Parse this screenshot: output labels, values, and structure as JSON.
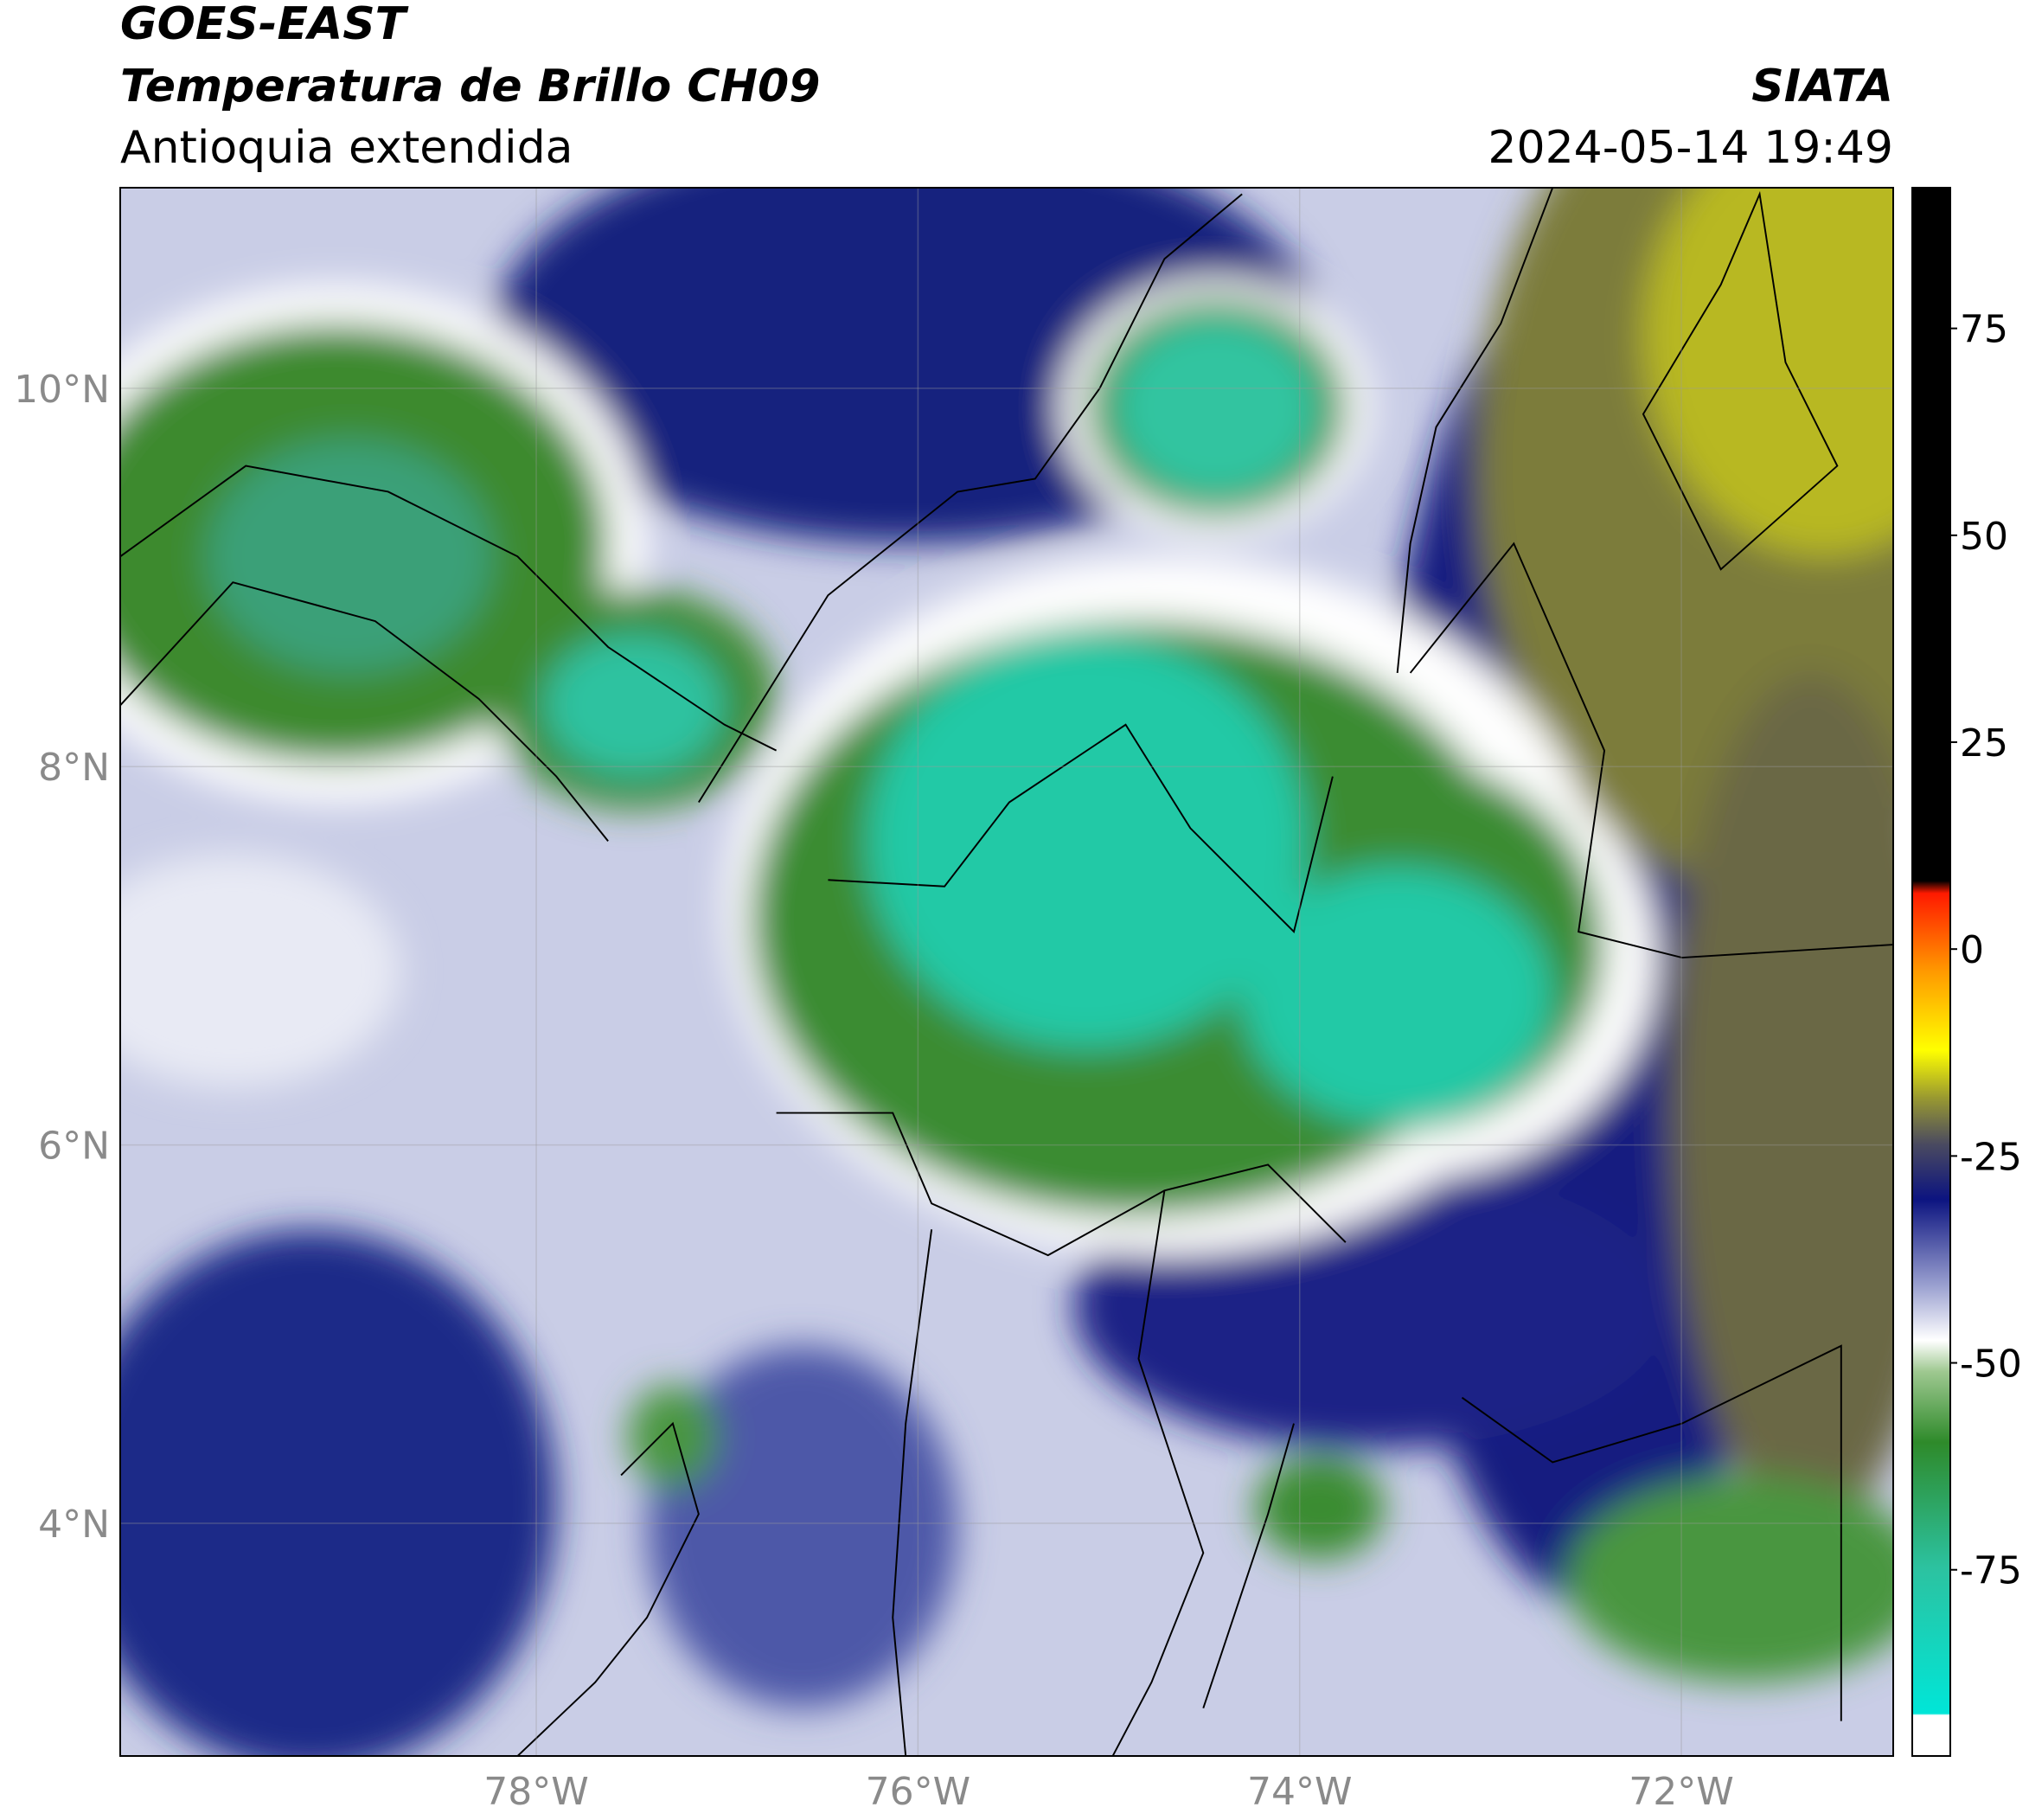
{
  "header": {
    "title": "GOES-EAST",
    "subtitle": "Temperatura de Brillo CH09",
    "region": "Antioquia extendida",
    "source": "SIATA",
    "datetime": "2024-05-14 19:49"
  },
  "map": {
    "xlim": [
      -80.18,
      -70.89
    ],
    "ylim": [
      2.77,
      11.06
    ],
    "xticks": [
      {
        "value": -78,
        "label": "78°W"
      },
      {
        "value": -76,
        "label": "76°W"
      },
      {
        "value": -74,
        "label": "74°W"
      },
      {
        "value": -72,
        "label": "72°W"
      }
    ],
    "yticks": [
      {
        "value": 10,
        "label": "10°N"
      },
      {
        "value": 8,
        "label": "8°N"
      },
      {
        "value": 6,
        "label": "6°N"
      },
      {
        "value": 4,
        "label": "4°N"
      }
    ],
    "grid": true
  },
  "colorbar": {
    "lim": [
      -97.5,
      92
    ],
    "ticks": [
      75,
      50,
      25,
      0,
      -25,
      -50,
      -75
    ]
  }
}
